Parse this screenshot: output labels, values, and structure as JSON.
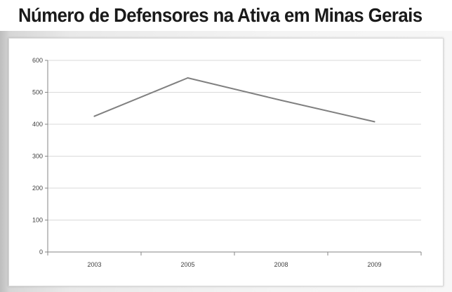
{
  "title": "Número de Defensores na Ativa em Minas Gerais",
  "chart_data": {
    "type": "line",
    "title": "Número de Defensores na Ativa em Minas Gerais",
    "categories": [
      "2003",
      "2005",
      "2008",
      "2009"
    ],
    "series": [
      {
        "values": [
          425,
          545,
          475,
          408
        ],
        "color": "#808080"
      }
    ],
    "yticks": [
      0,
      100,
      200,
      300,
      400,
      500,
      600
    ],
    "ylim": [
      0,
      600
    ],
    "grid": true,
    "legend": "none"
  }
}
